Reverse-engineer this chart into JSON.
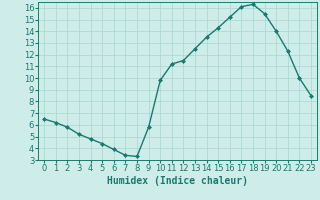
{
  "x": [
    0,
    1,
    2,
    3,
    4,
    5,
    6,
    7,
    8,
    9,
    10,
    11,
    12,
    13,
    14,
    15,
    16,
    17,
    18,
    19,
    20,
    21,
    22,
    23
  ],
  "y": [
    6.5,
    6.2,
    5.8,
    5.2,
    4.8,
    4.4,
    3.9,
    3.4,
    3.3,
    5.8,
    9.8,
    11.2,
    11.5,
    12.5,
    13.5,
    14.3,
    15.2,
    16.1,
    16.3,
    15.5,
    14.0,
    12.3,
    10.0,
    8.5
  ],
  "line_color": "#1a7a6e",
  "marker": "D",
  "marker_size": 2.0,
  "bg_color": "#cdecea",
  "grid_color": "#a8d5d0",
  "xlabel": "Humidex (Indice chaleur)",
  "xlim": [
    -0.5,
    23.5
  ],
  "ylim": [
    3,
    16.5
  ],
  "yticks": [
    3,
    4,
    5,
    6,
    7,
    8,
    9,
    10,
    11,
    12,
    13,
    14,
    15,
    16
  ],
  "xtick_labels": [
    "0",
    "1",
    "2",
    "3",
    "4",
    "5",
    "6",
    "7",
    "8",
    "9",
    "10",
    "11",
    "12",
    "13",
    "14",
    "15",
    "16",
    "17",
    "18",
    "19",
    "20",
    "21",
    "22",
    "23"
  ],
  "xlabel_fontsize": 7,
  "tick_fontsize": 6,
  "line_width": 1.0
}
